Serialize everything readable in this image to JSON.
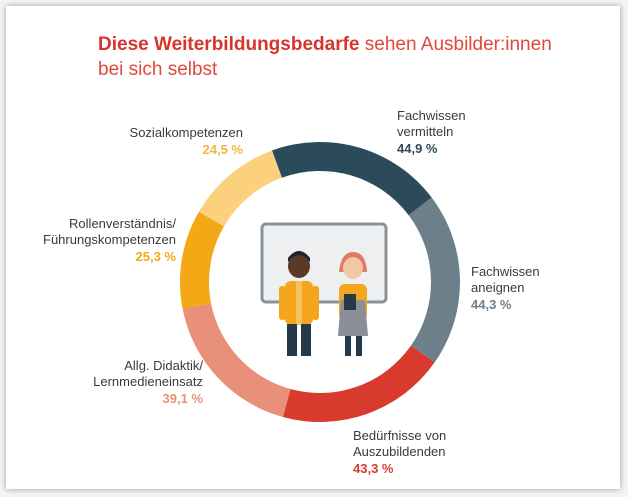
{
  "title": {
    "bold": "Diese Weiterbildungsbedarfe",
    "regular": " sehen Ausbilder:innen bei sich selbst"
  },
  "chart_data": {
    "type": "pie",
    "variant": "donut",
    "title": "Diese Weiterbildungsbedarfe sehen Ausbilder:innen bei sich selbst",
    "segments": [
      {
        "label_lines": [
          "Fachwissen",
          "vermitteln"
        ],
        "value": 44.9,
        "value_label": "44,9 %",
        "color": "#2c4b5a"
      },
      {
        "label_lines": [
          "Fachwissen",
          "aneignen"
        ],
        "value": 44.3,
        "value_label": "44,3 %",
        "color": "#6e7f8c"
      },
      {
        "label_lines": [
          "Bedürfnisse von",
          "Auszubildenden"
        ],
        "value": 43.3,
        "value_label": "43,3 %",
        "color": "#d83a2e"
      },
      {
        "label_lines": [
          "Allg. Didaktik/",
          "Lernmedieneinsatz"
        ],
        "value": 39.1,
        "value_label": "39,1 %",
        "color": "#e9907a"
      },
      {
        "label_lines": [
          "Rollenverständnis/",
          "Führungskompetenzen"
        ],
        "value": 25.3,
        "value_label": "25,3 %",
        "color": "#f5a816"
      },
      {
        "label_lines": [
          "Sozialkompetenzen"
        ],
        "value": 24.5,
        "value_label": "24,5 %",
        "color": "#fbd17e"
      }
    ]
  },
  "colors": {
    "title_accent": "#d7342b",
    "label_text": "#3a3a3a"
  },
  "illustration": {
    "icon": "two-trainers-at-whiteboard-icon"
  }
}
